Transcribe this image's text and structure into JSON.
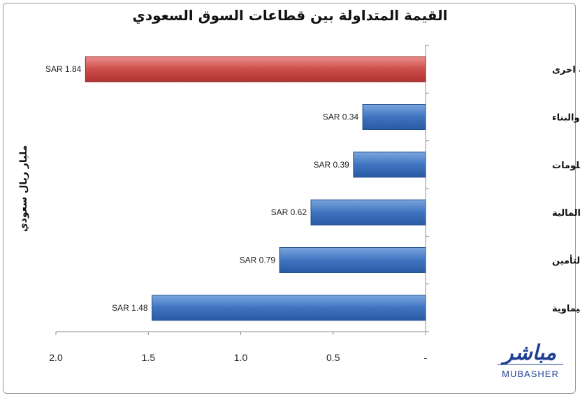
{
  "chart_data": {
    "type": "bar",
    "orientation": "horizontal",
    "title": "القيمة المتداولة بين قطاعات السوق السعودي",
    "ylabel": "مليار ريال سعودي",
    "categories": [
      "قطاعات اخرى",
      "التشييد والبناء",
      "الاتصالات وتقنية المعلومات",
      "المصارف والخدمات المالية",
      "التأمين",
      "الصناعات والبتروكيماوية"
    ],
    "values": [
      1.84,
      0.34,
      0.39,
      0.62,
      0.79,
      1.48
    ],
    "data_labels": [
      "SAR 1.84",
      "SAR 0.34",
      "SAR 0.39",
      "SAR 0.62",
      "SAR 0.79",
      "SAR 1.48"
    ],
    "xlim": [
      0,
      2.0
    ],
    "x_reversed": true,
    "x_ticks": [
      {
        "value": 2.0,
        "label": "2.0"
      },
      {
        "value": 1.5,
        "label": "1.5"
      },
      {
        "value": 1.0,
        "label": "1.0"
      },
      {
        "value": 0.5,
        "label": "0.5"
      },
      {
        "value": 0,
        "label": "-"
      }
    ],
    "grid": false,
    "colors": {
      "highlight": "#c0504d",
      "bar": "#4f81bd"
    }
  },
  "logo": {
    "arabic": "مباشر",
    "english": "MUBASHER"
  }
}
